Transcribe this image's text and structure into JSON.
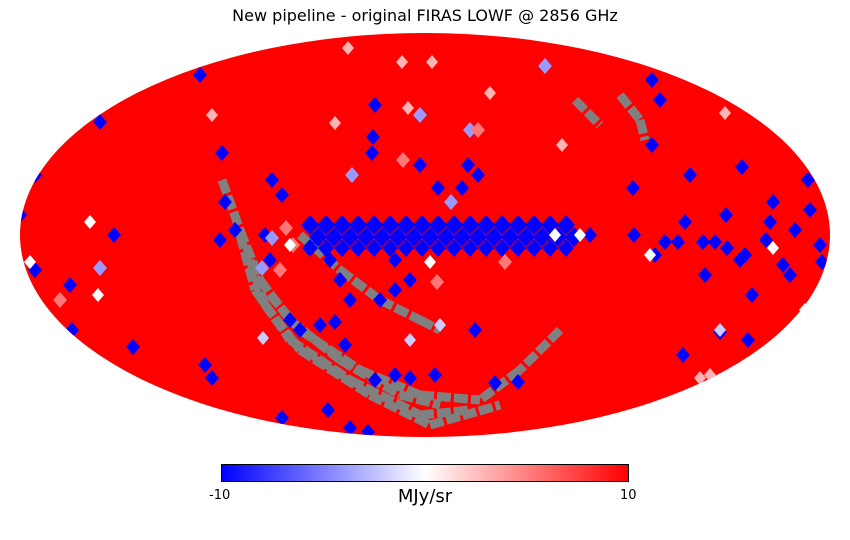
{
  "title": "New pipeline - original FIRAS LOWF @ 2856 GHz",
  "projection": "mollweide",
  "colorbar": {
    "min_label": "-10",
    "max_label": "10",
    "unit": "MJy/sr",
    "colors": [
      "#0000ff",
      "#ffffff",
      "#ff0000"
    ]
  },
  "colors": {
    "background": "#ff0000",
    "masked": "#808080",
    "low": "#0000ff",
    "high": "#ff0000"
  }
}
